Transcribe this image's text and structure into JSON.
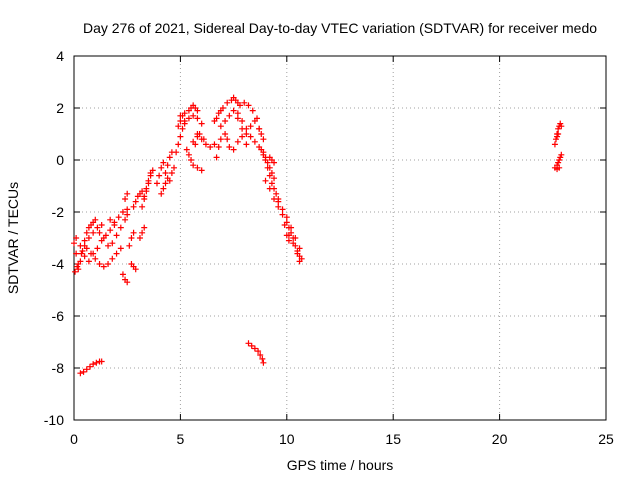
{
  "chart_data": {
    "type": "scatter",
    "title": "Day 276 of 2021, Sidereal Day-to-day VTEC variation (SDTVAR) for receiver medo",
    "xlabel": "GPS time / hours",
    "ylabel": "SDTVAR / TECUs",
    "xlim": [
      0,
      25
    ],
    "ylim": [
      -10,
      4
    ],
    "xticks": [
      0,
      5,
      10,
      15,
      20,
      25
    ],
    "yticks": [
      4,
      2,
      0,
      -2,
      -4,
      -6,
      -8,
      -10
    ],
    "grid": true,
    "marker": "+",
    "color": "#ff0000",
    "series": [
      {
        "segments": [
          [
            [
              0.0,
              -3.2
            ],
            [
              0.1,
              -3.6
            ],
            [
              0.15,
              -4.1
            ],
            [
              0.2,
              -4.2
            ],
            [
              0.3,
              -3.9
            ],
            [
              0.4,
              -3.5
            ],
            [
              0.5,
              -3.1
            ],
            [
              0.6,
              -2.8
            ],
            [
              0.7,
              -2.6
            ],
            [
              0.8,
              -2.5
            ],
            [
              0.9,
              -2.4
            ],
            [
              1.0,
              -2.3
            ]
          ],
          [
            [
              0.05,
              -4.3
            ],
            [
              0.2,
              -4.0
            ],
            [
              0.35,
              -3.6
            ],
            [
              0.5,
              -3.3
            ],
            [
              0.7,
              -3.0
            ],
            [
              0.9,
              -2.8
            ],
            [
              1.1,
              -2.6
            ],
            [
              1.3,
              -2.5
            ]
          ],
          [
            [
              0.1,
              -3.0
            ],
            [
              0.3,
              -3.3
            ],
            [
              0.5,
              -3.7
            ],
            [
              0.7,
              -3.9
            ],
            [
              0.9,
              -3.6
            ],
            [
              1.1,
              -3.4
            ],
            [
              1.3,
              -3.1
            ],
            [
              1.5,
              -2.9
            ],
            [
              1.7,
              -2.7
            ],
            [
              1.9,
              -2.5
            ]
          ],
          [
            [
              0.6,
              -3.4
            ],
            [
              0.8,
              -3.6
            ],
            [
              1.0,
              -3.8
            ],
            [
              1.2,
              -4.0
            ],
            [
              1.4,
              -4.1
            ],
            [
              1.6,
              -4.0
            ],
            [
              1.8,
              -3.8
            ],
            [
              2.0,
              -3.6
            ],
            [
              2.2,
              -3.4
            ]
          ],
          [
            [
              1.2,
              -2.8
            ],
            [
              1.4,
              -3.0
            ],
            [
              1.6,
              -3.3
            ],
            [
              1.8,
              -3.2
            ],
            [
              2.0,
              -2.9
            ],
            [
              2.2,
              -2.6
            ],
            [
              2.4,
              -2.3
            ],
            [
              2.5,
              -2.1
            ]
          ],
          [
            [
              1.7,
              -2.3
            ],
            [
              1.9,
              -2.4
            ],
            [
              2.1,
              -2.2
            ],
            [
              2.3,
              -2.0
            ],
            [
              2.5,
              -1.9
            ]
          ],
          [
            [
              2.3,
              -4.4
            ],
            [
              2.4,
              -4.6
            ],
            [
              2.5,
              -4.7
            ]
          ],
          [
            [
              2.6,
              -3.3
            ],
            [
              2.7,
              -3.0
            ],
            [
              2.8,
              -2.8
            ]
          ],
          [
            [
              2.7,
              -4.0
            ],
            [
              2.8,
              -4.1
            ],
            [
              2.9,
              -4.2
            ]
          ],
          [
            [
              2.4,
              -1.5
            ],
            [
              2.5,
              -1.3
            ]
          ],
          [
            [
              2.8,
              -1.8
            ],
            [
              2.9,
              -1.6
            ],
            [
              3.0,
              -1.4
            ],
            [
              3.1,
              -1.3
            ],
            [
              3.2,
              -1.2
            ]
          ],
          [
            [
              3.1,
              -3.0
            ],
            [
              3.2,
              -2.8
            ],
            [
              3.3,
              -2.6
            ]
          ],
          [
            [
              3.2,
              -1.8
            ],
            [
              3.3,
              -1.5
            ],
            [
              3.4,
              -1.2
            ],
            [
              3.5,
              -0.9
            ],
            [
              3.6,
              -0.6
            ],
            [
              3.7,
              -0.4
            ]
          ],
          [
            [
              3.3,
              -1.4
            ],
            [
              3.4,
              -1.1
            ],
            [
              3.5,
              -0.8
            ],
            [
              3.6,
              -0.5
            ]
          ],
          [
            [
              3.9,
              -0.9
            ],
            [
              4.0,
              -0.6
            ],
            [
              4.1,
              -0.3
            ],
            [
              4.2,
              -0.1
            ]
          ],
          [
            [
              4.1,
              -1.3
            ],
            [
              4.2,
              -1.1
            ],
            [
              4.3,
              -0.9
            ],
            [
              4.4,
              -0.7
            ]
          ],
          [
            [
              4.3,
              -0.5
            ],
            [
              4.4,
              -0.2
            ],
            [
              4.5,
              0.1
            ],
            [
              4.6,
              0.3
            ]
          ],
          [
            [
              4.5,
              -0.8
            ],
            [
              4.6,
              -0.5
            ],
            [
              4.7,
              -0.3
            ]
          ],
          [
            [
              4.8,
              0.3
            ],
            [
              4.9,
              0.6
            ],
            [
              5.0,
              0.9
            ],
            [
              5.1,
              1.2
            ],
            [
              5.2,
              1.4
            ]
          ],
          [
            [
              4.9,
              1.3
            ],
            [
              5.0,
              1.5
            ],
            [
              5.1,
              1.7
            ],
            [
              5.2,
              1.8
            ],
            [
              5.4,
              1.9
            ],
            [
              5.5,
              2.0
            ],
            [
              5.6,
              2.1
            ],
            [
              5.7,
              2.0
            ],
            [
              5.8,
              1.9
            ]
          ],
          [
            [
              5.0,
              1.7
            ],
            [
              5.2,
              1.5
            ],
            [
              5.4,
              1.6
            ],
            [
              5.6,
              1.7
            ],
            [
              5.8,
              1.6
            ],
            [
              6.0,
              1.4
            ]
          ],
          [
            [
              5.3,
              0.4
            ],
            [
              5.4,
              0.2
            ],
            [
              5.5,
              0.0
            ],
            [
              5.6,
              -0.2
            ],
            [
              5.8,
              -0.3
            ],
            [
              6.0,
              -0.4
            ]
          ],
          [
            [
              5.6,
              0.7
            ],
            [
              5.7,
              0.6
            ],
            [
              5.8,
              0.9
            ],
            [
              5.9,
              1.0
            ],
            [
              6.1,
              0.8
            ]
          ],
          [
            [
              5.8,
              1.0
            ],
            [
              6.0,
              0.8
            ],
            [
              6.2,
              0.6
            ],
            [
              6.4,
              0.5
            ],
            [
              6.6,
              0.6
            ]
          ],
          [
            [
              6.6,
              1.5
            ],
            [
              6.7,
              1.6
            ],
            [
              6.8,
              1.8
            ],
            [
              6.9,
              1.9
            ],
            [
              7.0,
              2.0
            ],
            [
              7.2,
              2.2
            ],
            [
              7.4,
              2.3
            ],
            [
              7.5,
              2.4
            ],
            [
              7.6,
              2.3
            ],
            [
              7.7,
              2.2
            ],
            [
              7.8,
              2.1
            ],
            [
              8.0,
              2.2
            ],
            [
              8.2,
              2.1
            ],
            [
              8.4,
              1.9
            ],
            [
              8.6,
              1.6
            ],
            [
              8.7,
              1.2
            ],
            [
              8.8,
              1.0
            ]
          ],
          [
            [
              6.9,
              1.3
            ],
            [
              7.1,
              1.5
            ],
            [
              7.3,
              1.7
            ],
            [
              7.5,
              1.9
            ],
            [
              7.7,
              1.6
            ],
            [
              7.9,
              1.2
            ],
            [
              8.1,
              1.0
            ],
            [
              8.3,
              1.3
            ],
            [
              8.5,
              1.5
            ],
            [
              8.7,
              1.2
            ],
            [
              8.9,
              0.8
            ]
          ],
          [
            [
              6.7,
              0.1
            ],
            [
              6.8,
              0.5
            ],
            [
              6.9,
              0.8
            ],
            [
              7.1,
              1.0
            ],
            [
              7.2,
              0.8
            ],
            [
              7.3,
              0.5
            ],
            [
              7.5,
              0.4
            ],
            [
              7.7,
              0.7
            ],
            [
              7.9,
              0.9
            ],
            [
              8.1,
              0.6
            ]
          ],
          [
            [
              7.7,
              1.8
            ],
            [
              7.9,
              1.5
            ],
            [
              8.1,
              1.2
            ],
            [
              8.3,
              0.9
            ],
            [
              8.5,
              0.7
            ],
            [
              8.7,
              0.5
            ],
            [
              8.9,
              0.3
            ],
            [
              9.0,
              0.1
            ],
            [
              9.1,
              -0.1
            ],
            [
              9.2,
              -0.3
            ],
            [
              9.3,
              -0.5
            ],
            [
              9.4,
              -0.7
            ]
          ],
          [
            [
              8.8,
              0.4
            ],
            [
              8.9,
              0.2
            ],
            [
              9.0,
              0.0
            ],
            [
              9.1,
              -0.3
            ],
            [
              9.2,
              -0.6
            ],
            [
              9.3,
              -0.9
            ],
            [
              9.4,
              -1.1
            ],
            [
              9.5,
              -1.3
            ],
            [
              9.6,
              -1.5
            ]
          ],
          [
            [
              9.0,
              -0.8
            ],
            [
              9.2,
              -1.1
            ],
            [
              9.4,
              -1.5
            ],
            [
              9.6,
              -1.8
            ],
            [
              9.8,
              -2.1
            ],
            [
              10.0,
              -2.4
            ],
            [
              10.1,
              -2.6
            ],
            [
              10.2,
              -2.8
            ],
            [
              10.3,
              -3.0
            ],
            [
              10.4,
              -3.3
            ],
            [
              10.5,
              -3.6
            ],
            [
              10.6,
              -3.9
            ]
          ],
          [
            [
              9.6,
              -1.6
            ],
            [
              9.8,
              -1.9
            ],
            [
              10.0,
              -2.2
            ],
            [
              10.2,
              -2.6
            ],
            [
              10.4,
              -3.0
            ],
            [
              10.6,
              -3.4
            ],
            [
              10.7,
              -3.8
            ]
          ],
          [
            [
              9.9,
              -2.5
            ],
            [
              10.1,
              -2.9
            ],
            [
              10.3,
              -3.2
            ],
            [
              10.5,
              -3.5
            ],
            [
              10.6,
              -3.7
            ]
          ],
          [
            [
              9.2,
              0.1
            ],
            [
              9.3,
              0.0
            ],
            [
              9.4,
              -0.1
            ]
          ],
          [
            [
              10.0,
              -2.9
            ],
            [
              10.1,
              -3.1
            ]
          ],
          [
            [
              0.3,
              -8.2
            ],
            [
              0.45,
              -8.15
            ],
            [
              0.6,
              -8.05
            ],
            [
              0.75,
              -7.95
            ],
            [
              0.9,
              -7.85
            ],
            [
              1.05,
              -7.8
            ],
            [
              1.2,
              -7.75
            ],
            [
              1.3,
              -7.75
            ]
          ],
          [
            [
              8.2,
              -7.05
            ],
            [
              8.35,
              -7.15
            ],
            [
              8.5,
              -7.25
            ],
            [
              8.65,
              -7.35
            ],
            [
              8.75,
              -7.5
            ],
            [
              8.85,
              -7.65
            ],
            [
              8.9,
              -7.8
            ]
          ],
          [
            [
              22.6,
              0.6
            ],
            [
              22.65,
              0.8
            ],
            [
              22.7,
              1.0
            ],
            [
              22.75,
              1.2
            ],
            [
              22.8,
              1.3
            ],
            [
              22.85,
              1.4
            ],
            [
              22.9,
              1.3
            ],
            [
              22.75,
              1.0
            ],
            [
              22.7,
              0.9
            ]
          ],
          [
            [
              22.6,
              -0.3
            ],
            [
              22.7,
              -0.2
            ],
            [
              22.75,
              -0.1
            ],
            [
              22.8,
              0.0
            ],
            [
              22.85,
              0.1
            ],
            [
              22.9,
              0.2
            ],
            [
              22.8,
              -0.3
            ],
            [
              22.7,
              -0.35
            ]
          ]
        ]
      }
    ]
  }
}
